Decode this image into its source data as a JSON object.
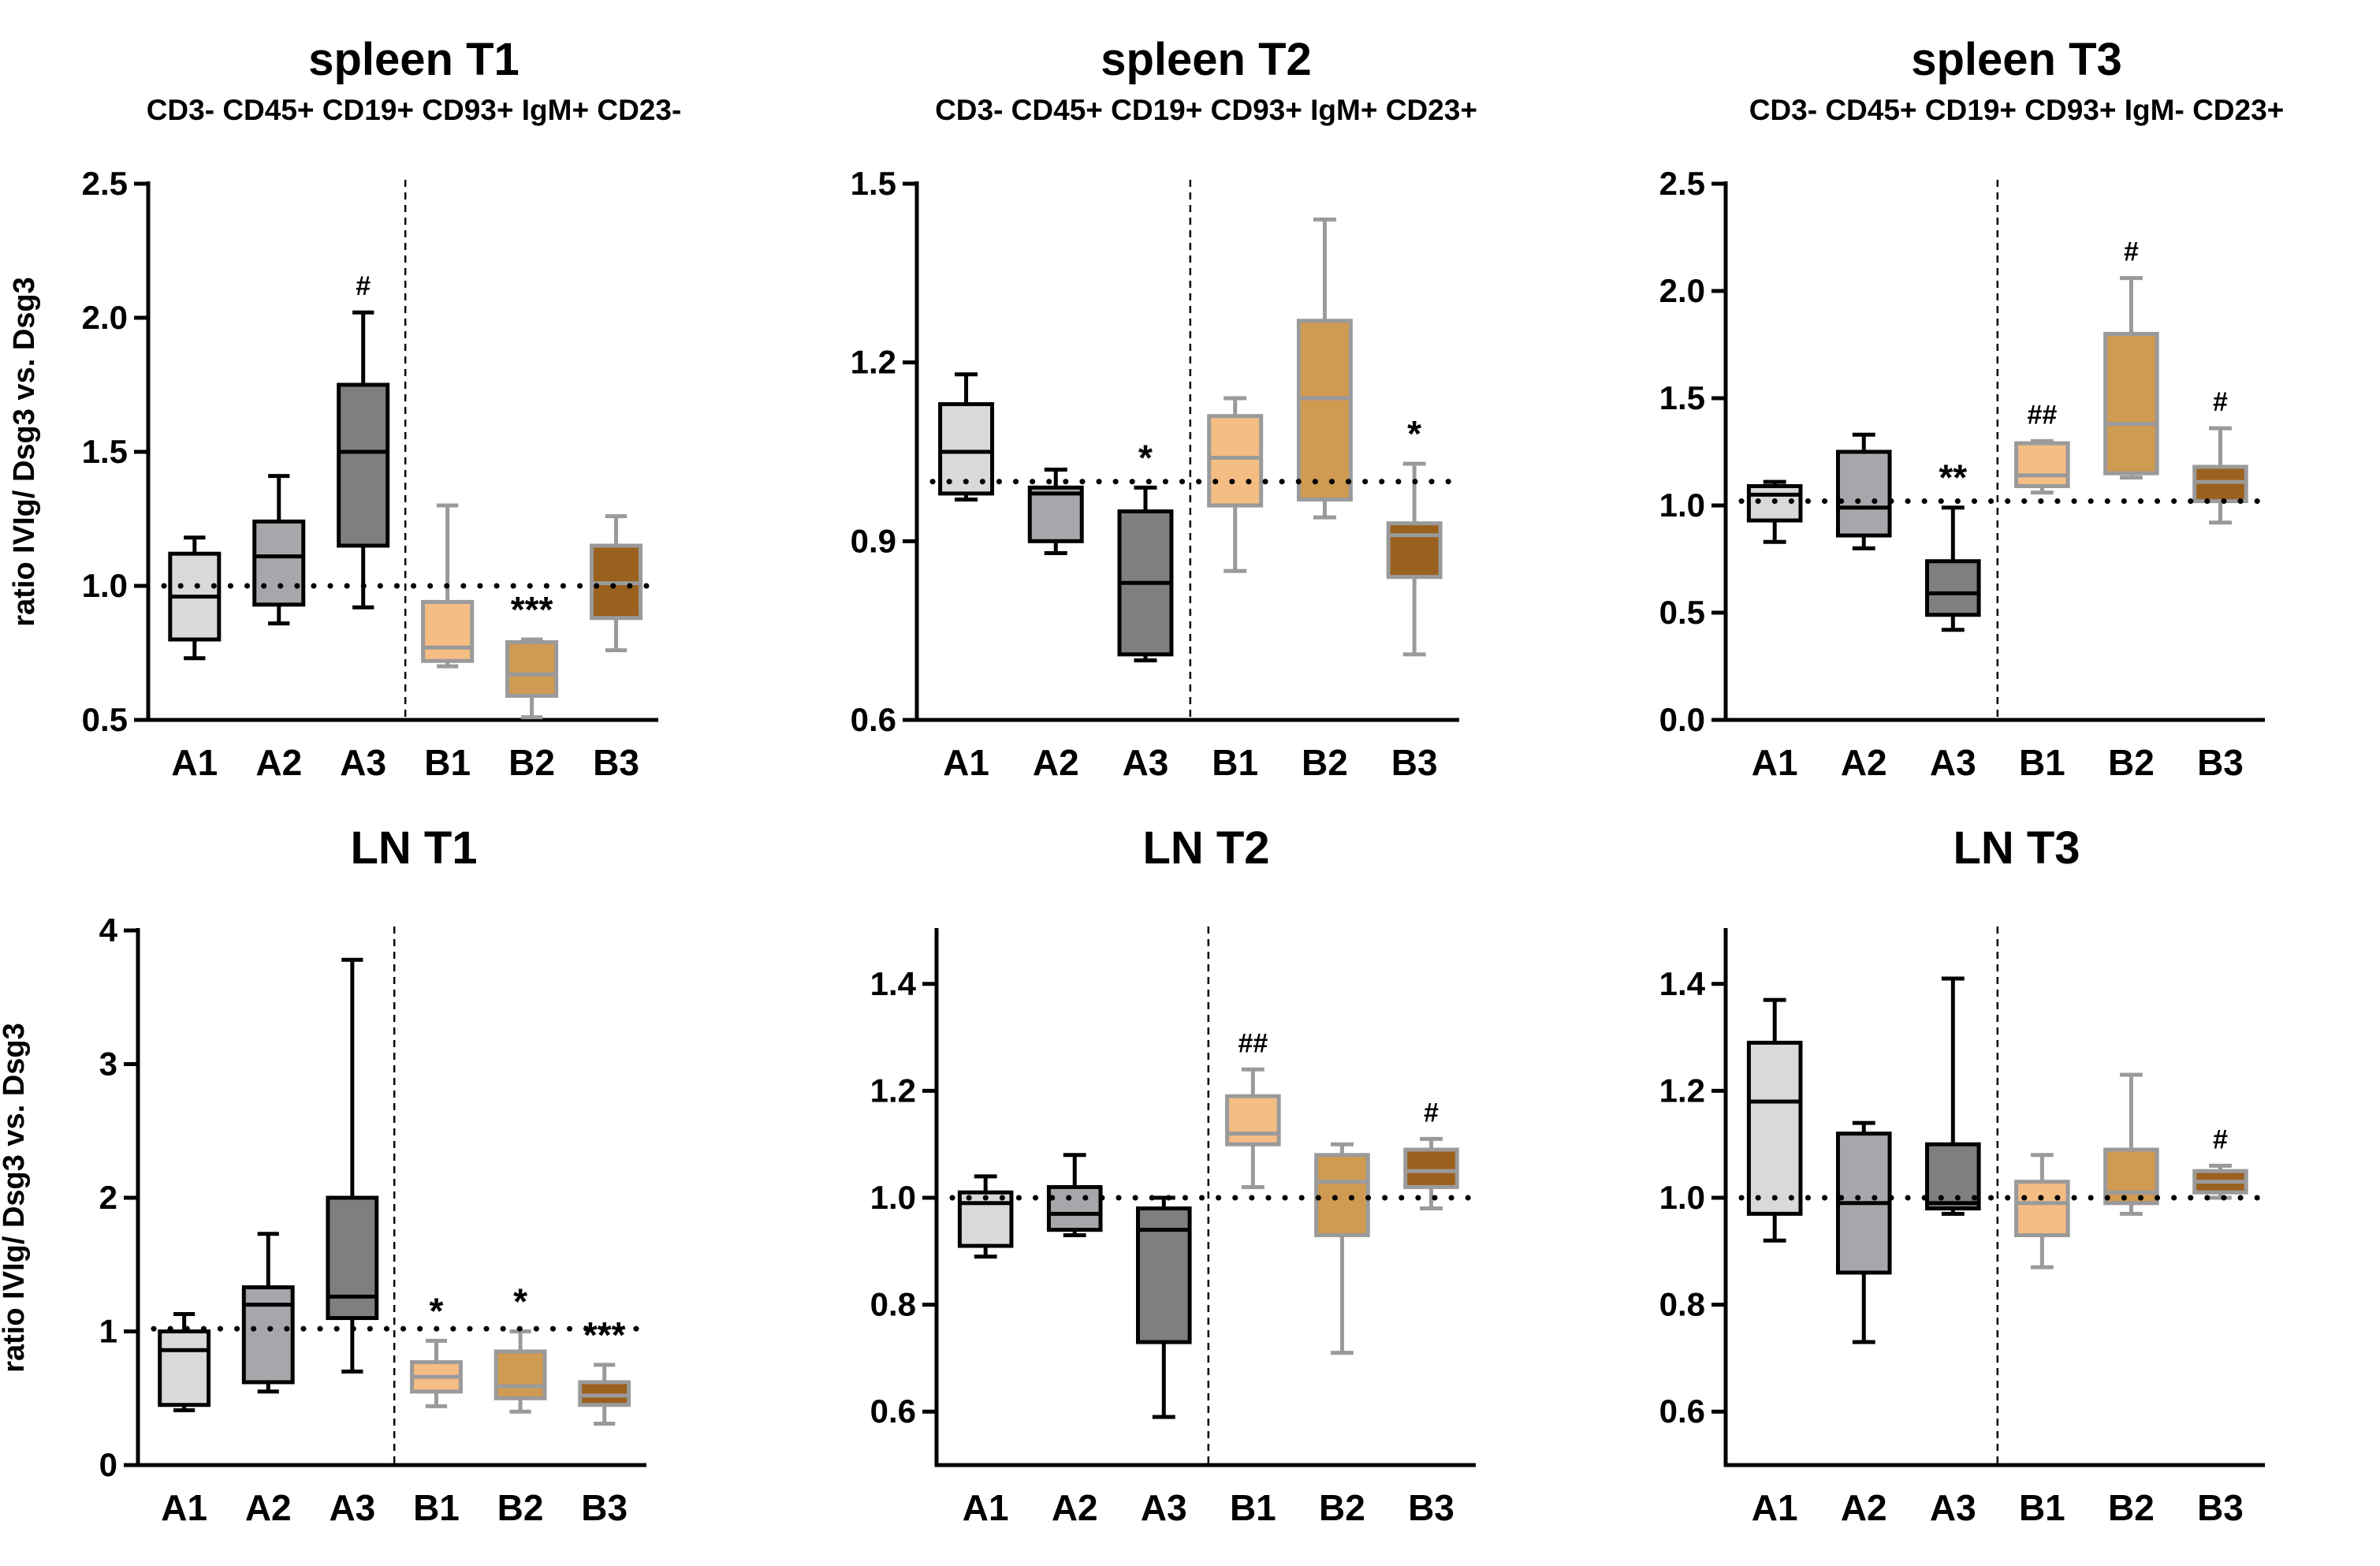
{
  "figure": {
    "colors": {
      "A1": {
        "fill": "#d9d9d9",
        "stroke": "#000000"
      },
      "A2": {
        "fill": "#a6a6ab",
        "stroke": "#000000"
      },
      "A3": {
        "fill": "#7f7f7f",
        "stroke": "#000000"
      },
      "B1": {
        "fill": "#f4bd84",
        "stroke": "#9a9a9a"
      },
      "B2": {
        "fill": "#cf9a52",
        "stroke": "#9a9a9a"
      },
      "B3": {
        "fill": "#9a611e",
        "stroke": "#9a9a9a"
      }
    }
  },
  "chart_data": [
    {
      "type": "box",
      "title": "spleen T1",
      "subtitle": "CD3- CD45+ CD19+ CD93+ IgM+ CD23-",
      "ylabel": "ratio IVIg/ Dsg3 vs. Dsg3",
      "ylim": [
        0.5,
        2.5
      ],
      "yticks": [
        "0.5",
        "1.0",
        "1.5",
        "2.0",
        "2.5"
      ],
      "yticks_values": [
        0.5,
        1.0,
        1.5,
        2.0,
        2.5
      ],
      "reference_line": 1.0,
      "categories": [
        "A1",
        "A2",
        "A3",
        "B1",
        "B2",
        "B3"
      ],
      "boxes": [
        {
          "group": "A1",
          "min": 0.73,
          "q1": 0.8,
          "median": 0.96,
          "q3": 1.12,
          "max": 1.18,
          "mark": ""
        },
        {
          "group": "A2",
          "min": 0.86,
          "q1": 0.93,
          "median": 1.11,
          "q3": 1.24,
          "max": 1.41,
          "mark": ""
        },
        {
          "group": "A3",
          "min": 0.92,
          "q1": 1.15,
          "median": 1.5,
          "q3": 1.75,
          "max": 2.02,
          "mark": "#"
        },
        {
          "group": "B1",
          "min": 0.7,
          "q1": 0.72,
          "median": 0.77,
          "q3": 0.94,
          "max": 1.3,
          "mark": ""
        },
        {
          "group": "B2",
          "min": 0.51,
          "q1": 0.59,
          "median": 0.67,
          "q3": 0.79,
          "max": 0.8,
          "mark": "***"
        },
        {
          "group": "B3",
          "min": 0.76,
          "q1": 0.88,
          "median": 1.01,
          "q3": 1.15,
          "max": 1.26,
          "mark": ""
        }
      ]
    },
    {
      "type": "box",
      "title": "spleen T2",
      "subtitle": "CD3- CD45+ CD19+ CD93+ IgM+ CD23+",
      "ylabel": "",
      "ylim": [
        0.6,
        1.5
      ],
      "yticks": [
        "0.6",
        "0.9",
        "1.2",
        "1.5"
      ],
      "yticks_values": [
        0.6,
        0.9,
        1.2,
        1.5
      ],
      "reference_line": 1.0,
      "categories": [
        "A1",
        "A2",
        "A3",
        "B1",
        "B2",
        "B3"
      ],
      "boxes": [
        {
          "group": "A1",
          "min": 0.97,
          "q1": 0.98,
          "median": 1.05,
          "q3": 1.13,
          "max": 1.18,
          "mark": ""
        },
        {
          "group": "A2",
          "min": 0.88,
          "q1": 0.9,
          "median": 0.98,
          "q3": 0.99,
          "max": 1.02,
          "mark": ""
        },
        {
          "group": "A3",
          "min": 0.7,
          "q1": 0.71,
          "median": 0.83,
          "q3": 0.95,
          "max": 0.99,
          "mark": "*"
        },
        {
          "group": "B1",
          "min": 0.85,
          "q1": 0.96,
          "median": 1.04,
          "q3": 1.11,
          "max": 1.14,
          "mark": ""
        },
        {
          "group": "B2",
          "min": 0.94,
          "q1": 0.97,
          "median": 1.14,
          "q3": 1.27,
          "max": 1.44,
          "mark": ""
        },
        {
          "group": "B3",
          "min": 0.71,
          "q1": 0.84,
          "median": 0.91,
          "q3": 0.93,
          "max": 1.03,
          "mark": "*"
        }
      ]
    },
    {
      "type": "box",
      "title": "spleen T3",
      "subtitle": "CD3- CD45+ CD19+ CD93+ IgM- CD23+",
      "ylabel": "",
      "ylim": [
        0.0,
        2.5
      ],
      "yticks": [
        "0.0",
        "0.5",
        "1.0",
        "1.5",
        "2.0",
        "2.5"
      ],
      "yticks_values": [
        0.0,
        0.5,
        1.0,
        1.5,
        2.0,
        2.5
      ],
      "reference_line": 1.02,
      "categories": [
        "A1",
        "A2",
        "A3",
        "B1",
        "B2",
        "B3"
      ],
      "boxes": [
        {
          "group": "A1",
          "min": 0.83,
          "q1": 0.93,
          "median": 1.05,
          "q3": 1.09,
          "max": 1.11,
          "mark": ""
        },
        {
          "group": "A2",
          "min": 0.8,
          "q1": 0.86,
          "median": 0.99,
          "q3": 1.25,
          "max": 1.33,
          "mark": ""
        },
        {
          "group": "A3",
          "min": 0.42,
          "q1": 0.49,
          "median": 0.59,
          "q3": 0.74,
          "max": 0.99,
          "mark": "**"
        },
        {
          "group": "B1",
          "min": 1.06,
          "q1": 1.09,
          "median": 1.14,
          "q3": 1.29,
          "max": 1.3,
          "mark": "##"
        },
        {
          "group": "B2",
          "min": 1.13,
          "q1": 1.15,
          "median": 1.38,
          "q3": 1.8,
          "max": 2.06,
          "mark": "#"
        },
        {
          "group": "B3",
          "min": 0.92,
          "q1": 1.02,
          "median": 1.11,
          "q3": 1.18,
          "max": 1.36,
          "mark": "#"
        }
      ]
    },
    {
      "type": "box",
      "title": "LN T1",
      "subtitle": "",
      "ylabel": "ratio IVIg/ Dsg3 vs. Dsg3",
      "ylim": [
        0,
        4
      ],
      "yticks": [
        "0",
        "1",
        "2",
        "3",
        "4"
      ],
      "yticks_values": [
        0,
        1,
        2,
        3,
        4
      ],
      "reference_line": 1.02,
      "categories": [
        "A1",
        "A2",
        "A3",
        "B1",
        "B2",
        "B3"
      ],
      "boxes": [
        {
          "group": "A1",
          "min": 0.41,
          "q1": 0.45,
          "median": 0.86,
          "q3": 1.0,
          "max": 1.13,
          "mark": ""
        },
        {
          "group": "A2",
          "min": 0.55,
          "q1": 0.62,
          "median": 1.2,
          "q3": 1.33,
          "max": 1.73,
          "mark": ""
        },
        {
          "group": "A3",
          "min": 0.7,
          "q1": 1.1,
          "median": 1.26,
          "q3": 2.0,
          "max": 3.78,
          "mark": ""
        },
        {
          "group": "B1",
          "min": 0.44,
          "q1": 0.55,
          "median": 0.66,
          "q3": 0.77,
          "max": 0.93,
          "mark": "*"
        },
        {
          "group": "B2",
          "min": 0.4,
          "q1": 0.5,
          "median": 0.59,
          "q3": 0.85,
          "max": 1.0,
          "mark": "*"
        },
        {
          "group": "B3",
          "min": 0.31,
          "q1": 0.45,
          "median": 0.52,
          "q3": 0.62,
          "max": 0.75,
          "mark": "***"
        }
      ]
    },
    {
      "type": "box",
      "title": "LN T2",
      "subtitle": "",
      "ylabel": "",
      "ylim": [
        0.5,
        1.5
      ],
      "yticks": [
        "0.6",
        "0.8",
        "1.0",
        "1.2",
        "1.4"
      ],
      "yticks_values": [
        0.6,
        0.8,
        1.0,
        1.2,
        1.4
      ],
      "reference_line": 1.0,
      "categories": [
        "A1",
        "A2",
        "A3",
        "B1",
        "B2",
        "B3"
      ],
      "boxes": [
        {
          "group": "A1",
          "min": 0.89,
          "q1": 0.91,
          "median": 0.99,
          "q3": 1.01,
          "max": 1.04,
          "mark": ""
        },
        {
          "group": "A2",
          "min": 0.93,
          "q1": 0.94,
          "median": 0.97,
          "q3": 1.02,
          "max": 1.08,
          "mark": ""
        },
        {
          "group": "A3",
          "min": 0.59,
          "q1": 0.73,
          "median": 0.94,
          "q3": 0.98,
          "max": 1.0,
          "mark": ""
        },
        {
          "group": "B1",
          "min": 1.02,
          "q1": 1.1,
          "median": 1.12,
          "q3": 1.19,
          "max": 1.24,
          "mark": "##"
        },
        {
          "group": "B2",
          "min": 0.71,
          "q1": 0.93,
          "median": 1.03,
          "q3": 1.08,
          "max": 1.1,
          "mark": ""
        },
        {
          "group": "B3",
          "min": 0.98,
          "q1": 1.02,
          "median": 1.05,
          "q3": 1.09,
          "max": 1.11,
          "mark": "#"
        }
      ]
    },
    {
      "type": "box",
      "title": "LN T3",
      "subtitle": "",
      "ylabel": "",
      "ylim": [
        0.5,
        1.5
      ],
      "yticks": [
        "0.6",
        "0.8",
        "1.0",
        "1.2",
        "1.4"
      ],
      "yticks_values": [
        0.6,
        0.8,
        1.0,
        1.2,
        1.4
      ],
      "reference_line": 1.0,
      "categories": [
        "A1",
        "A2",
        "A3",
        "B1",
        "B2",
        "B3"
      ],
      "boxes": [
        {
          "group": "A1",
          "min": 0.92,
          "q1": 0.97,
          "median": 1.18,
          "q3": 1.29,
          "max": 1.37,
          "mark": ""
        },
        {
          "group": "A2",
          "min": 0.73,
          "q1": 0.86,
          "median": 0.99,
          "q3": 1.12,
          "max": 1.14,
          "mark": ""
        },
        {
          "group": "A3",
          "min": 0.97,
          "q1": 0.98,
          "median": 0.99,
          "q3": 1.1,
          "max": 1.41,
          "mark": ""
        },
        {
          "group": "B1",
          "min": 0.87,
          "q1": 0.93,
          "median": 0.99,
          "q3": 1.03,
          "max": 1.08,
          "mark": ""
        },
        {
          "group": "B2",
          "min": 0.97,
          "q1": 0.99,
          "median": 1.01,
          "q3": 1.09,
          "max": 1.23,
          "mark": ""
        },
        {
          "group": "B3",
          "min": 1.0,
          "q1": 1.01,
          "median": 1.03,
          "q3": 1.05,
          "max": 1.06,
          "mark": "#"
        }
      ]
    }
  ]
}
